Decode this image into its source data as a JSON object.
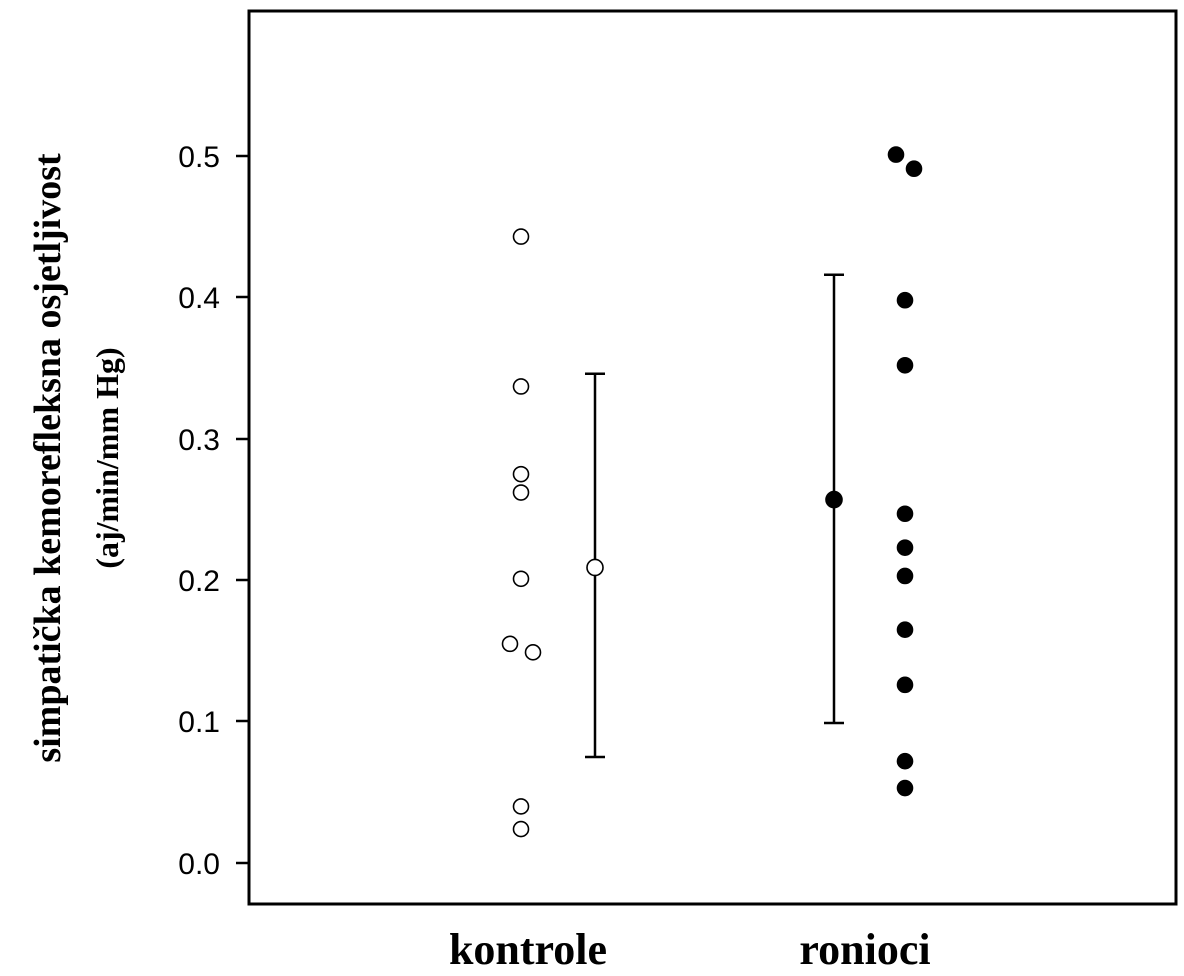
{
  "chart_data": {
    "type": "scatter",
    "title": "",
    "ylabel": "simpatička kemorefleksna osjetljivost",
    "ylabel_unit": "(aj/min/mm Hg)",
    "xlabel": "",
    "ylim": [
      0.0,
      0.5
    ],
    "y_ticks": [
      "0.0",
      "0.1",
      "0.2",
      "0.3",
      "0.4",
      "0.5"
    ],
    "categories": [
      "kontrole",
      "ronioci"
    ],
    "grid": false,
    "legend": "none",
    "series": [
      {
        "category": "kontrole",
        "marker": "open-circle",
        "color": "#000000",
        "points": [
          0.443,
          0.337,
          0.275,
          0.262,
          0.201,
          0.155,
          0.149,
          0.04,
          0.024
        ],
        "mean": 0.209,
        "error_low": 0.075,
        "error_high": 0.346
      },
      {
        "category": "ronioci",
        "marker": "filled-circle",
        "color": "#000000",
        "points": [
          0.501,
          0.491,
          0.398,
          0.352,
          0.247,
          0.223,
          0.203,
          0.165,
          0.126,
          0.072,
          0.053
        ],
        "mean": 0.257,
        "error_low": 0.099,
        "error_high": 0.416
      }
    ]
  }
}
